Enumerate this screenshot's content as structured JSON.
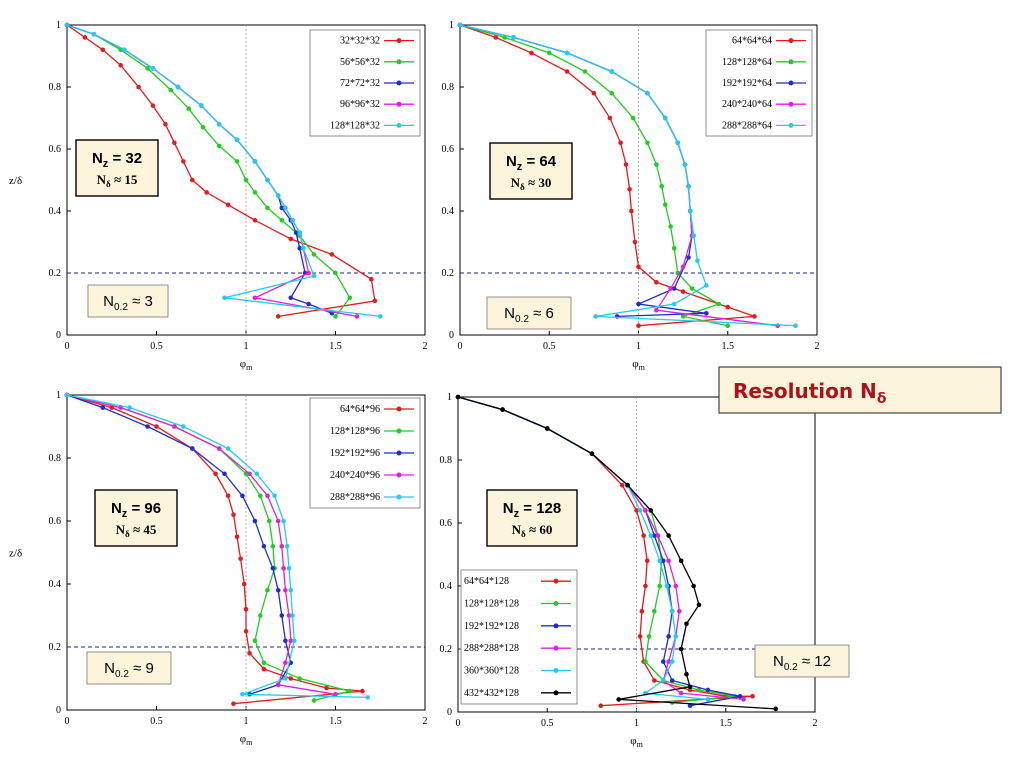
{
  "banner": {
    "label": "Resolution N",
    "sub": "δ"
  },
  "chart_data": [
    {
      "type": "line",
      "xlabel": "φ",
      "xlabel_sub": "m",
      "ylabel": "z/δ",
      "xlim": [
        0,
        2
      ],
      "ylim": [
        0,
        1
      ],
      "xticks": [
        "0",
        "0.5",
        "1",
        "1.5",
        "2"
      ],
      "yticks": [
        "0",
        "0.2",
        "0.4",
        "0.6",
        "0.8",
        "1"
      ],
      "vline_x": 1,
      "hline_y": 0.2,
      "legend_position": "top-right",
      "nz_label": "N",
      "nz_sub": "z",
      "nz_value": " = 32",
      "nd_label": "N",
      "nd_sub": "δ",
      "nd_value": " ≈ 15",
      "n02_label": "N",
      "n02_sub": "0.2",
      "n02_value": " ≈ 3",
      "series": [
        {
          "name": "32*32*32",
          "color": "#e41a1c",
          "x": [
            0,
            0.1,
            0.2,
            0.3,
            0.4,
            0.48,
            0.55,
            0.6,
            0.65,
            0.7,
            0.78,
            0.9,
            1.05,
            1.25,
            1.48,
            1.7,
            1.72,
            1.18
          ],
          "y": [
            1,
            0.96,
            0.92,
            0.87,
            0.8,
            0.74,
            0.68,
            0.62,
            0.56,
            0.5,
            0.46,
            0.42,
            0.37,
            0.31,
            0.26,
            0.18,
            0.11,
            0.06
          ]
        },
        {
          "name": "56*56*32",
          "color": "#22cc22",
          "x": [
            0,
            0.15,
            0.3,
            0.45,
            0.58,
            0.68,
            0.76,
            0.85,
            0.95,
            1.0,
            1.05,
            1.12,
            1.2,
            1.3,
            1.38,
            1.5,
            1.58,
            1.5
          ],
          "y": [
            1,
            0.97,
            0.92,
            0.86,
            0.79,
            0.73,
            0.67,
            0.61,
            0.56,
            0.5,
            0.46,
            0.41,
            0.37,
            0.32,
            0.26,
            0.2,
            0.12,
            0.06
          ]
        },
        {
          "name": "72*72*32",
          "color": "#1f2ecc",
          "x": [
            0,
            0.15,
            0.32,
            0.48,
            0.62,
            0.75,
            0.85,
            0.95,
            1.05,
            1.12,
            1.18,
            1.2,
            1.25,
            1.28,
            1.3,
            1.33,
            1.25,
            1.35,
            1.48
          ],
          "y": [
            1,
            0.97,
            0.92,
            0.86,
            0.8,
            0.74,
            0.68,
            0.63,
            0.56,
            0.5,
            0.45,
            0.41,
            0.37,
            0.33,
            0.28,
            0.2,
            0.12,
            0.1,
            0.07
          ]
        },
        {
          "name": "96*96*32",
          "color": "#dd22dd",
          "x": [
            0,
            0.15,
            0.32,
            0.48,
            0.62,
            0.75,
            0.85,
            0.95,
            1.05,
            1.12,
            1.18,
            1.22,
            1.26,
            1.3,
            1.32,
            1.35,
            1.05,
            1.62
          ],
          "y": [
            1,
            0.97,
            0.92,
            0.86,
            0.8,
            0.74,
            0.68,
            0.63,
            0.56,
            0.5,
            0.45,
            0.41,
            0.37,
            0.33,
            0.28,
            0.2,
            0.12,
            0.06
          ]
        },
        {
          "name": "128*128*32",
          "color": "#22ccee",
          "x": [
            0,
            0.15,
            0.32,
            0.48,
            0.62,
            0.75,
            0.85,
            0.95,
            1.05,
            1.12,
            1.18,
            1.22,
            1.26,
            1.3,
            1.32,
            1.38,
            0.88,
            1.75
          ],
          "y": [
            1,
            0.97,
            0.92,
            0.86,
            0.8,
            0.74,
            0.68,
            0.63,
            0.56,
            0.5,
            0.45,
            0.41,
            0.37,
            0.33,
            0.28,
            0.19,
            0.12,
            0.06
          ]
        }
      ]
    },
    {
      "type": "line",
      "xlabel": "φ",
      "xlabel_sub": "m",
      "ylabel": "",
      "xlim": [
        0,
        2
      ],
      "ylim": [
        0,
        1
      ],
      "xticks": [
        "0",
        "0.5",
        "1",
        "1.5",
        "2"
      ],
      "yticks": [
        "0",
        "0.2",
        "0.4",
        "0.6",
        "0.8",
        "1"
      ],
      "vline_x": 1,
      "hline_y": 0.2,
      "legend_position": "top-right",
      "nz_label": "N",
      "nz_sub": "z",
      "nz_value": " = 64",
      "nd_label": "N",
      "nd_sub": "δ",
      "nd_value": " ≈ 30",
      "n02_label": "N",
      "n02_sub": "0.2",
      "n02_value": " ≈ 6",
      "series": [
        {
          "name": "64*64*64",
          "color": "#e41a1c",
          "x": [
            0,
            0.2,
            0.4,
            0.6,
            0.75,
            0.84,
            0.9,
            0.93,
            0.95,
            0.96,
            0.98,
            1.0,
            1.1,
            1.25,
            1.5,
            1.65,
            1.0
          ],
          "y": [
            1,
            0.96,
            0.91,
            0.85,
            0.78,
            0.7,
            0.62,
            0.55,
            0.47,
            0.4,
            0.3,
            0.22,
            0.17,
            0.14,
            0.09,
            0.06,
            0.03
          ]
        },
        {
          "name": "128*128*64",
          "color": "#22cc22",
          "x": [
            0,
            0.25,
            0.5,
            0.7,
            0.85,
            0.97,
            1.05,
            1.1,
            1.13,
            1.15,
            1.18,
            1.2,
            1.22,
            1.3,
            1.45,
            1.25,
            1.5
          ],
          "y": [
            1,
            0.96,
            0.91,
            0.85,
            0.78,
            0.7,
            0.62,
            0.55,
            0.48,
            0.42,
            0.35,
            0.28,
            0.2,
            0.15,
            0.1,
            0.06,
            0.03
          ]
        },
        {
          "name": "192*192*64",
          "color": "#1f2ecc",
          "x": [
            0,
            0.3,
            0.6,
            0.85,
            1.05,
            1.15,
            1.22,
            1.26,
            1.28,
            1.29,
            1.3,
            1.28,
            1.2,
            1.0,
            1.38,
            0.88
          ],
          "y": [
            1,
            0.96,
            0.91,
            0.85,
            0.78,
            0.7,
            0.62,
            0.55,
            0.48,
            0.4,
            0.32,
            0.25,
            0.15,
            0.1,
            0.07,
            0.06
          ]
        },
        {
          "name": "240*240*64",
          "color": "#dd22dd",
          "x": [
            0,
            0.3,
            0.6,
            0.85,
            1.05,
            1.15,
            1.22,
            1.26,
            1.28,
            1.29,
            1.3,
            1.25,
            1.18,
            1.1,
            1.78
          ],
          "y": [
            1,
            0.96,
            0.91,
            0.85,
            0.78,
            0.7,
            0.62,
            0.55,
            0.48,
            0.4,
            0.32,
            0.22,
            0.15,
            0.08,
            0.03
          ]
        },
        {
          "name": "288*288*64",
          "color": "#22ccee",
          "x": [
            0,
            0.3,
            0.6,
            0.85,
            1.05,
            1.15,
            1.22,
            1.26,
            1.28,
            1.29,
            1.31,
            1.33,
            1.38,
            1.2,
            0.76,
            1.88
          ],
          "y": [
            1,
            0.96,
            0.91,
            0.85,
            0.78,
            0.7,
            0.62,
            0.55,
            0.48,
            0.4,
            0.32,
            0.24,
            0.16,
            0.1,
            0.06,
            0.03
          ]
        }
      ]
    },
    {
      "type": "line",
      "xlabel": "φ",
      "xlabel_sub": "m",
      "ylabel": "z/δ",
      "xlim": [
        0,
        2
      ],
      "ylim": [
        0,
        1
      ],
      "xticks": [
        "0",
        "0.5",
        "1",
        "1.5",
        "2"
      ],
      "yticks": [
        "0",
        "0.2",
        "0.4",
        "0.6",
        "0.8",
        "1"
      ],
      "vline_x": 1,
      "hline_y": 0.2,
      "legend_position": "top-right",
      "nz_label": "N",
      "nz_sub": "z",
      "nz_value": " = 96",
      "nd_label": "N",
      "nd_sub": "δ",
      "nd_value": " ≈ 45",
      "n02_label": "N",
      "n02_sub": "0.2",
      "n02_value": " ≈ 9",
      "series": [
        {
          "name": "64*64*96",
          "color": "#e41a1c",
          "x": [
            0,
            0.25,
            0.5,
            0.7,
            0.83,
            0.9,
            0.93,
            0.95,
            0.97,
            0.99,
            1.0,
            1.0,
            1.02,
            1.1,
            1.25,
            1.45,
            1.65,
            0.93
          ],
          "y": [
            1,
            0.96,
            0.9,
            0.83,
            0.75,
            0.68,
            0.62,
            0.55,
            0.48,
            0.4,
            0.32,
            0.25,
            0.18,
            0.13,
            0.1,
            0.07,
            0.06,
            0.02
          ]
        },
        {
          "name": "128*128*96",
          "color": "#22cc22",
          "x": [
            0,
            0.3,
            0.6,
            0.85,
            1.0,
            1.08,
            1.13,
            1.15,
            1.16,
            1.12,
            1.08,
            1.05,
            1.1,
            1.3,
            1.58,
            1.38
          ],
          "y": [
            1,
            0.96,
            0.9,
            0.83,
            0.75,
            0.68,
            0.6,
            0.52,
            0.45,
            0.38,
            0.3,
            0.22,
            0.15,
            0.1,
            0.06,
            0.03
          ]
        },
        {
          "name": "192*192*96",
          "color": "#1f2ecc",
          "x": [
            0,
            0.2,
            0.45,
            0.7,
            0.88,
            0.98,
            1.05,
            1.1,
            1.15,
            1.18,
            1.2,
            1.22,
            1.25,
            1.18,
            1.02
          ],
          "y": [
            1,
            0.96,
            0.9,
            0.83,
            0.75,
            0.68,
            0.6,
            0.52,
            0.45,
            0.38,
            0.3,
            0.22,
            0.15,
            0.08,
            0.05
          ]
        },
        {
          "name": "240*240*96",
          "color": "#dd22dd",
          "x": [
            0,
            0.3,
            0.6,
            0.85,
            1.02,
            1.12,
            1.18,
            1.2,
            1.21,
            1.22,
            1.24,
            1.25,
            1.22,
            1.18,
            1.5
          ],
          "y": [
            1,
            0.96,
            0.9,
            0.83,
            0.75,
            0.68,
            0.6,
            0.52,
            0.45,
            0.38,
            0.3,
            0.22,
            0.15,
            0.08,
            0.05
          ]
        },
        {
          "name": "288*288*96",
          "color": "#22ccee",
          "x": [
            0,
            0.35,
            0.65,
            0.9,
            1.06,
            1.16,
            1.21,
            1.23,
            1.24,
            1.25,
            1.26,
            1.27,
            1.22,
            0.98,
            1.68
          ],
          "y": [
            1,
            0.96,
            0.9,
            0.83,
            0.75,
            0.68,
            0.6,
            0.52,
            0.45,
            0.38,
            0.3,
            0.22,
            0.1,
            0.05,
            0.04
          ]
        }
      ]
    },
    {
      "type": "line",
      "xlabel": "φ",
      "xlabel_sub": "m",
      "ylabel": "",
      "xlim": [
        0,
        2
      ],
      "ylim": [
        0,
        1
      ],
      "xticks": [
        "0",
        "0.5",
        "1",
        "1.5",
        "2"
      ],
      "yticks": [
        "0",
        "0.2",
        "0.4",
        "0.6",
        "0.8",
        "1"
      ],
      "vline_x": 1,
      "hline_y": 0.2,
      "legend_position": "bottom-left",
      "nz_label": "N",
      "nz_sub": "z",
      "nz_value": " = 128",
      "nd_label": "N",
      "nd_sub": "δ",
      "nd_value": " ≈ 60",
      "n02_label": "N",
      "n02_sub": "0.2",
      "n02_value": " ≈ 12",
      "series": [
        {
          "name": "64*64*128",
          "color": "#e41a1c",
          "x": [
            0,
            0.25,
            0.5,
            0.75,
            0.92,
            1.0,
            1.04,
            1.06,
            1.05,
            1.03,
            1.02,
            1.04,
            1.1,
            1.3,
            1.5,
            1.65,
            0.8
          ],
          "y": [
            1,
            0.96,
            0.9,
            0.82,
            0.72,
            0.64,
            0.56,
            0.48,
            0.4,
            0.32,
            0.24,
            0.16,
            0.1,
            0.07,
            0.05,
            0.05,
            0.02
          ]
        },
        {
          "name": "128*128*128",
          "color": "#22cc22",
          "x": [
            0,
            0.25,
            0.5,
            0.75,
            0.95,
            1.08,
            1.12,
            1.14,
            1.13,
            1.1,
            1.07,
            1.05,
            1.15,
            1.35,
            1.55,
            1.2
          ],
          "y": [
            1,
            0.96,
            0.9,
            0.82,
            0.72,
            0.64,
            0.56,
            0.48,
            0.4,
            0.32,
            0.24,
            0.16,
            0.1,
            0.07,
            0.05,
            0.03
          ]
        },
        {
          "name": "192*192*128",
          "color": "#1f2ecc",
          "x": [
            0,
            0.25,
            0.5,
            0.75,
            0.95,
            1.05,
            1.1,
            1.15,
            1.18,
            1.2,
            1.18,
            1.15,
            1.2,
            1.4,
            1.58,
            1.3
          ],
          "y": [
            1,
            0.96,
            0.9,
            0.82,
            0.72,
            0.64,
            0.56,
            0.48,
            0.4,
            0.32,
            0.24,
            0.16,
            0.1,
            0.07,
            0.05,
            0.02
          ]
        },
        {
          "name": "288*288*128",
          "color": "#dd22dd",
          "x": [
            0,
            0.25,
            0.5,
            0.75,
            0.95,
            1.05,
            1.12,
            1.18,
            1.22,
            1.24,
            1.22,
            1.18,
            1.15,
            1.25,
            1.6
          ],
          "y": [
            1,
            0.96,
            0.9,
            0.82,
            0.72,
            0.64,
            0.56,
            0.48,
            0.4,
            0.32,
            0.24,
            0.16,
            0.1,
            0.06,
            0.04
          ]
        },
        {
          "name": "360*360*128",
          "color": "#22ccee",
          "x": [
            0,
            0.25,
            0.5,
            0.75,
            0.95,
            1.02,
            1.08,
            1.13,
            1.17,
            1.2,
            1.22,
            1.2,
            1.15,
            1.05,
            1.4
          ],
          "y": [
            1,
            0.96,
            0.9,
            0.82,
            0.72,
            0.64,
            0.56,
            0.48,
            0.4,
            0.32,
            0.24,
            0.16,
            0.1,
            0.06,
            0.04
          ]
        },
        {
          "name": "432*432*128",
          "color": "#000000",
          "x": [
            0,
            0.25,
            0.5,
            0.75,
            0.95,
            1.08,
            1.18,
            1.25,
            1.32,
            1.35,
            1.28,
            1.25,
            1.28,
            1.3,
            0.9,
            1.78
          ],
          "y": [
            1,
            0.96,
            0.9,
            0.82,
            0.72,
            0.64,
            0.56,
            0.48,
            0.4,
            0.34,
            0.28,
            0.2,
            0.12,
            0.08,
            0.04,
            0.01
          ]
        }
      ]
    }
  ]
}
